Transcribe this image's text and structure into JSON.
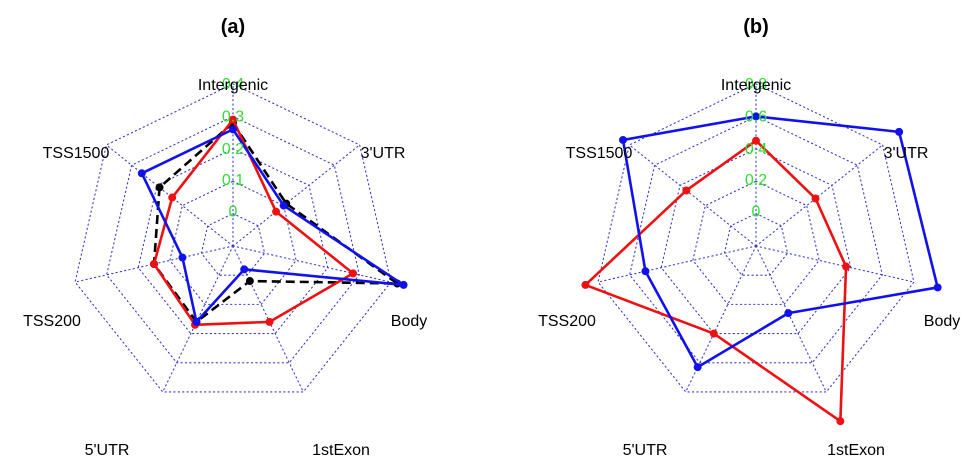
{
  "chart_data": [
    {
      "type": "radar",
      "title": "(a)",
      "categories": [
        "Intergenic",
        "3'UTR",
        "Body",
        "1stExon",
        "5'UTR",
        "TSS200",
        "TSS1500"
      ],
      "rlim": [
        -0.1,
        0.4
      ],
      "ticks": [
        "0",
        "0.1",
        "0.2",
        "0.3",
        "0.4"
      ],
      "tick_values": [
        0,
        0.1,
        0.2,
        0.3,
        0.4
      ],
      "grid": true,
      "series": [
        {
          "color": "#000000",
          "dashed": true,
          "values": [
            0.28,
            0.11,
            0.42,
            0.02,
            0.16,
            0.15,
            0.19
          ]
        },
        {
          "color": "#ee1111",
          "dashed": false,
          "values": [
            0.29,
            0.07,
            0.28,
            0.16,
            0.17,
            0.15,
            0.14
          ]
        },
        {
          "color": "#1111ee",
          "dashed": false,
          "values": [
            0.26,
            0.1,
            0.44,
            -0.02,
            0.16,
            0.06,
            0.26
          ]
        }
      ]
    },
    {
      "type": "radar",
      "title": "(b)",
      "categories": [
        "Intergenic",
        "3'UTR",
        "Body",
        "1stExon",
        "5'UTR",
        "TSS200",
        "TSS1500"
      ],
      "rlim": [
        -0.2,
        0.8
      ],
      "ticks": [
        "0",
        "0.2",
        "0.4",
        "0.6",
        "0.8"
      ],
      "tick_values": [
        0,
        0.2,
        0.4,
        0.6,
        0.8
      ],
      "grid": true,
      "series": [
        {
          "color": "#ee1111",
          "dashed": false,
          "values": [
            0.45,
            0.27,
            0.37,
            1.0,
            0.4,
            0.88,
            0.35
          ]
        },
        {
          "color": "#1111ee",
          "dashed": false,
          "values": [
            0.6,
            0.93,
            0.95,
            0.26,
            0.63,
            0.5,
            0.85
          ]
        }
      ]
    }
  ]
}
